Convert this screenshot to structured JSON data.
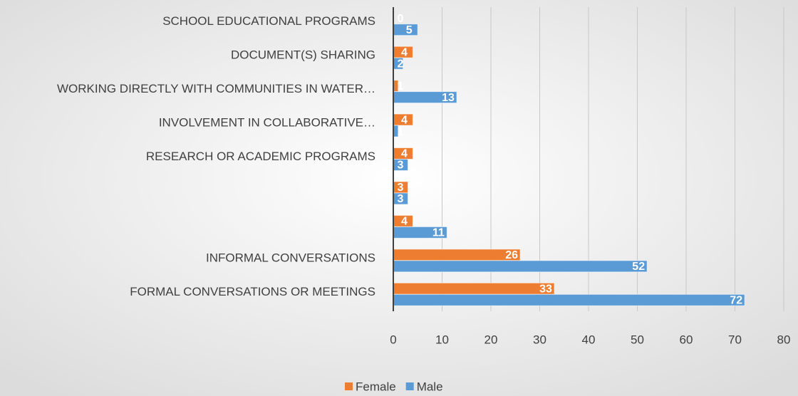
{
  "chart_data": {
    "type": "bar",
    "orientation": "horizontal",
    "categories": [
      "SCHOOL EDUCATIONAL PROGRAMS",
      "DOCUMENT(S) SHARING",
      "WORKING DIRECTLY WITH COMMUNITIES IN  WATER…",
      "INVOLVEMENT IN COLLABORATIVE…",
      "RESEARCH OR ACADEMIC PROGRAMS",
      null,
      null,
      "INFORMAL CONVERSATIONS",
      "FORMAL CONVERSATIONS OR MEETINGS"
    ],
    "series": [
      {
        "name": "Female",
        "color": "#ed7d31",
        "values": [
          0,
          4,
          1,
          4,
          4,
          3,
          4,
          26,
          33
        ]
      },
      {
        "name": "Male",
        "color": "#5b9bd5",
        "values": [
          5,
          2,
          13,
          1,
          3,
          3,
          11,
          52,
          72
        ]
      }
    ],
    "xlim": [
      0,
      80
    ],
    "xticks": [
      0,
      10,
      20,
      30,
      40,
      50,
      60,
      70,
      80
    ],
    "grid": true,
    "legend": "bottom"
  }
}
